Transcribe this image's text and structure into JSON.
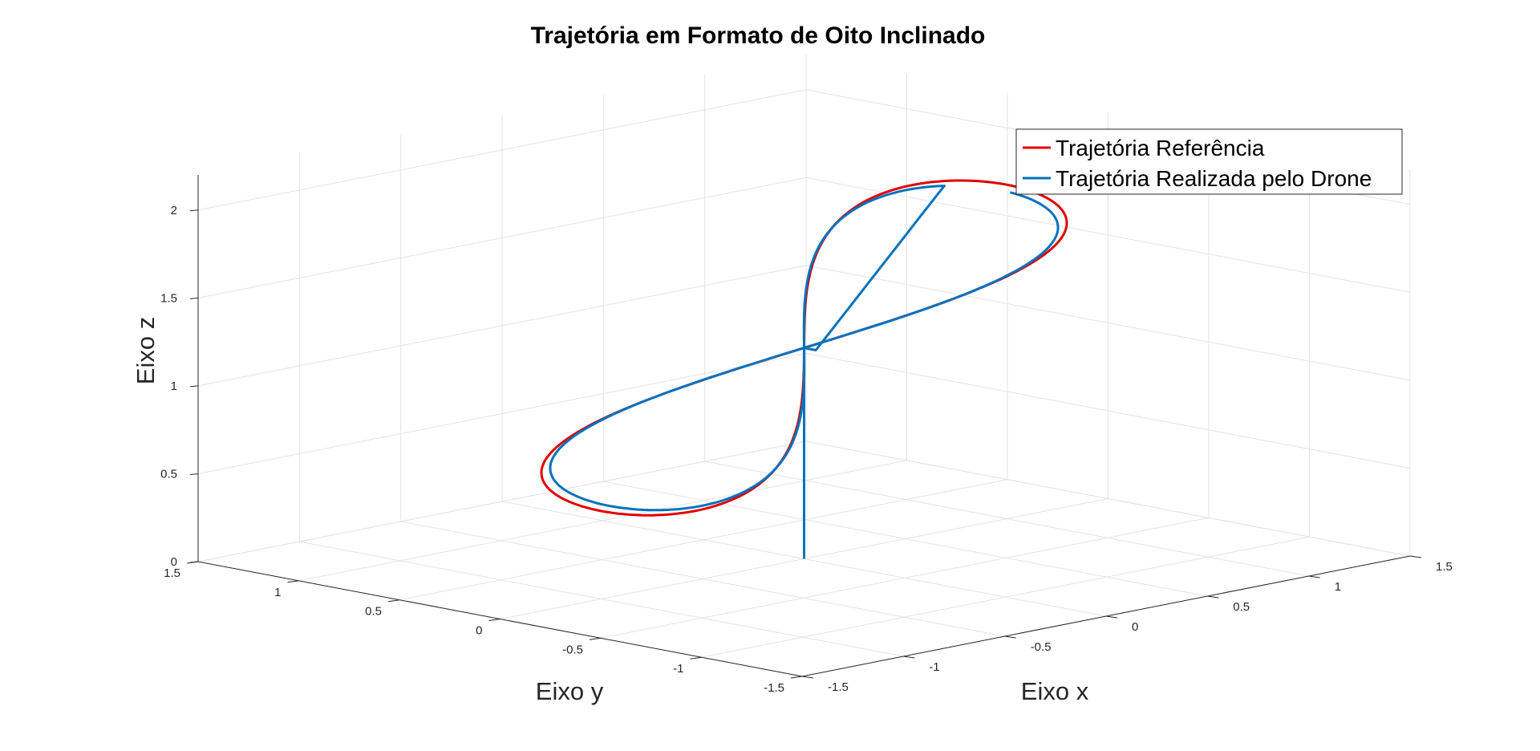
{
  "chart_data": {
    "type": "line",
    "projection": "3d",
    "title": "Trajetória em Formato de Oito Inclinado",
    "xlabel": "Eixo x",
    "ylabel": "Eixo y",
    "zlabel": "Eixo z",
    "xlim": [
      -1.5,
      1.5
    ],
    "ylim": [
      -1.5,
      1.5
    ],
    "zlim": [
      0,
      2.2
    ],
    "xticks": [
      "-1.5",
      "-1",
      "-0.5",
      "0",
      "0.5",
      "1",
      "1.5"
    ],
    "yticks": [
      "-1.5",
      "-1",
      "-0.5",
      "0",
      "0.5",
      "1",
      "1.5"
    ],
    "zticks": [
      "0",
      "0.5",
      "1",
      "1.5",
      "2"
    ],
    "grid": true,
    "legend_position": "top-right",
    "series": [
      {
        "name": "Trajetória Referência",
        "color": "#e00000",
        "shape": "tilted figure-eight: x = cos(t), y = 0.5·sin(2t), z = 1.2 + 0.7·cos(t), t from 0 to 2π",
        "points": 241
      },
      {
        "name": "Trajetória Realizada pelo Drone",
        "color": "#0072bd",
        "shape": "vertical take-off from (0, 0, 0) to (0, 0, 1.2), then tracks the figure-eight with a small lag",
        "points": 300
      }
    ]
  }
}
